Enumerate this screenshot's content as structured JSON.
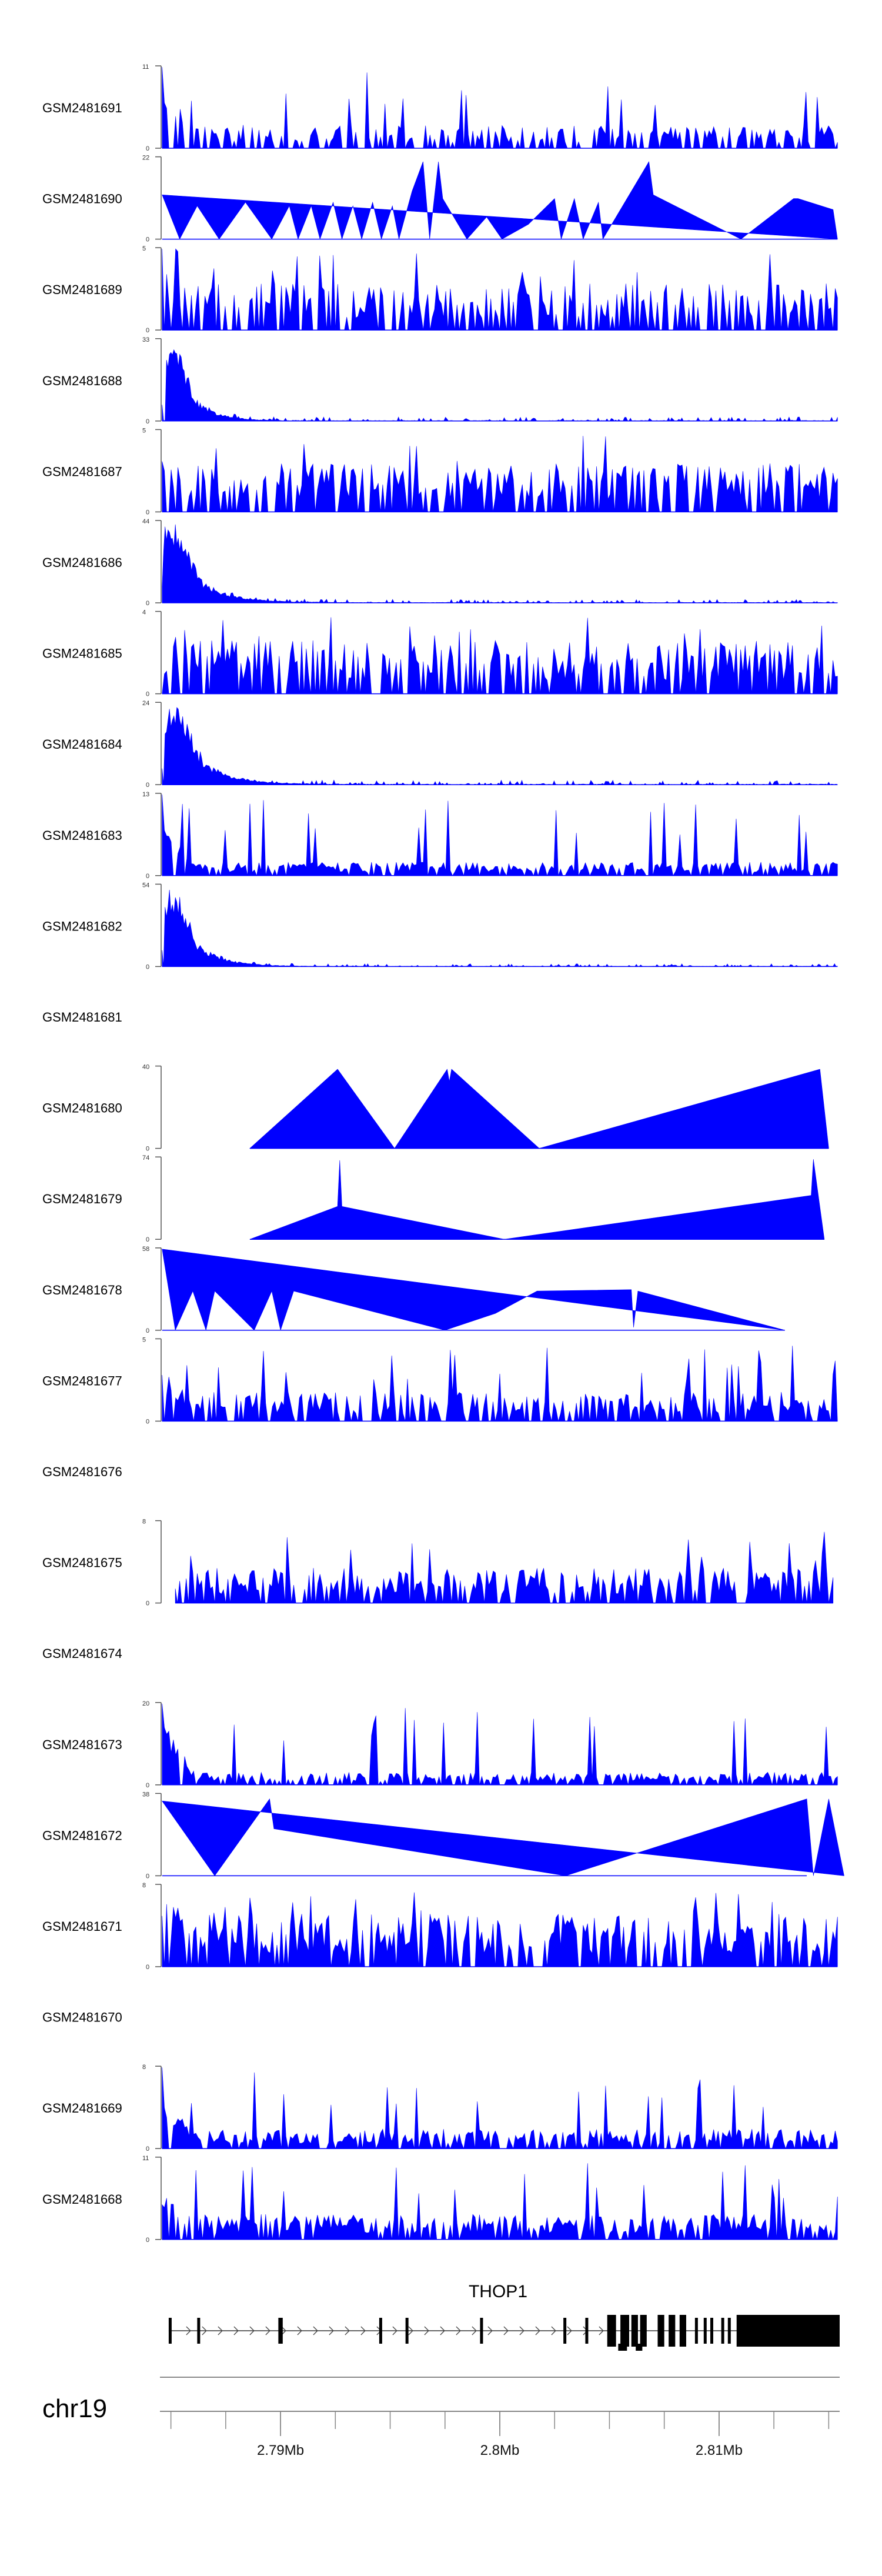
{
  "chart_data": {
    "type": "area",
    "title": "",
    "chromosome": "chr19",
    "fill_color": "#0000ff",
    "gene_color": "#000000",
    "axis_color": "#888888",
    "xlim": [
      2.7845,
      2.8155
    ],
    "x_unit": "Mb",
    "ticks": [
      {
        "value": 2.79,
        "label": "2.79Mb"
      },
      {
        "value": 2.8,
        "label": "2.8Mb"
      },
      {
        "value": 2.81,
        "label": "2.81Mb"
      }
    ],
    "minor_ticks": [
      2.785,
      2.7875,
      2.79,
      2.7925,
      2.795,
      2.7975,
      2.8,
      2.8025,
      2.805,
      2.8075,
      2.81,
      2.8125,
      2.815
    ],
    "tracks": [
      {
        "name": "GSM2481691",
        "ymax": 11,
        "seed": 11,
        "style": "spiky",
        "decay": 0.55,
        "density": 0.55,
        "base": 0.24,
        "xstart": 2.7846,
        "xend": 2.8154
      },
      {
        "name": "GSM2481690",
        "ymax": 22,
        "seed": 22,
        "style": "tri",
        "xstart": 2.7846,
        "xend": 2.8154,
        "profile": [
          [
            2.7846,
            12
          ],
          [
            2.7854,
            0
          ],
          [
            2.7862,
            9
          ],
          [
            2.7872,
            0
          ],
          [
            2.7884,
            10
          ],
          [
            2.7896,
            0
          ],
          [
            2.7904,
            9
          ],
          [
            2.7908,
            0
          ],
          [
            2.7914,
            9
          ],
          [
            2.7918,
            0
          ],
          [
            2.7924,
            10
          ],
          [
            2.7928,
            0
          ],
          [
            2.7933,
            9
          ],
          [
            2.7937,
            0
          ],
          [
            2.7942,
            10
          ],
          [
            2.7946,
            0
          ],
          [
            2.7951,
            9
          ],
          [
            2.7954,
            0
          ],
          [
            2.796,
            13
          ],
          [
            2.7965,
            21
          ],
          [
            2.7968,
            0
          ],
          [
            2.7972,
            21
          ],
          [
            2.7974,
            11
          ],
          [
            2.7985,
            0
          ],
          [
            2.7994,
            6
          ],
          [
            2.8001,
            0
          ],
          [
            2.8013,
            4
          ],
          [
            2.8025,
            11
          ],
          [
            2.8028,
            0
          ],
          [
            2.8034,
            11
          ],
          [
            2.8038,
            0
          ],
          [
            2.8045,
            10
          ],
          [
            2.8047,
            0
          ],
          [
            2.8068,
            21
          ],
          [
            2.807,
            12
          ],
          [
            2.811,
            0
          ],
          [
            2.8134,
            11
          ],
          [
            2.8136,
            11
          ],
          [
            2.8152,
            8
          ],
          [
            2.8154,
            0
          ]
        ]
      },
      {
        "name": "GSM2481689",
        "ymax": 5,
        "seed": 89,
        "style": "spiky",
        "decay": 0.35,
        "density": 0.62,
        "base": 0.48,
        "xstart": 2.7846,
        "xend": 2.8154
      },
      {
        "name": "GSM2481688",
        "ymax": 33,
        "seed": 88,
        "style": "hump",
        "peak": 2.7851,
        "width": 0.0006,
        "base": 0.035,
        "xstart": 2.7846,
        "xend": 2.8154
      },
      {
        "name": "GSM2481687",
        "ymax": 5,
        "seed": 87,
        "style": "spiky",
        "decay": 0.2,
        "density": 0.68,
        "base": 0.5,
        "xstart": 2.7846,
        "xend": 2.8154
      },
      {
        "name": "GSM2481686",
        "ymax": 44,
        "seed": 86,
        "style": "hump",
        "peak": 2.7851,
        "width": 0.0008,
        "base": 0.03,
        "xstart": 2.7846,
        "xend": 2.8154
      },
      {
        "name": "GSM2481685",
        "ymax": 4,
        "seed": 85,
        "style": "spiky",
        "decay": 0.1,
        "density": 0.7,
        "base": 0.55,
        "xstart": 2.7846,
        "xend": 2.8154
      },
      {
        "name": "GSM2481684",
        "ymax": 24,
        "seed": 84,
        "style": "hump",
        "peak": 2.7852,
        "width": 0.0008,
        "base": 0.04,
        "xstart": 2.7846,
        "xend": 2.8154
      },
      {
        "name": "GSM2481683",
        "ymax": 13,
        "seed": 83,
        "style": "spiky",
        "decay": 0.6,
        "density": 0.8,
        "base": 0.14,
        "xstart": 2.7846,
        "xend": 2.8154
      },
      {
        "name": "GSM2481682",
        "ymax": 54,
        "seed": 82,
        "style": "hump",
        "peak": 2.7851,
        "width": 0.0007,
        "base": 0.025,
        "xstart": 2.7846,
        "xend": 2.8154
      },
      {
        "name": "GSM2481681",
        "style": "empty"
      },
      {
        "name": "GSM2481680",
        "ymax": 40,
        "seed": 80,
        "style": "tri",
        "xstart": 2.7886,
        "xend": 2.815,
        "profile": [
          [
            2.7886,
            0
          ],
          [
            2.7926,
            39
          ],
          [
            2.7952,
            0
          ],
          [
            2.7976,
            39
          ],
          [
            2.7977,
            33
          ],
          [
            2.7978,
            39
          ],
          [
            2.8018,
            0
          ],
          [
            2.8146,
            39
          ],
          [
            2.815,
            0
          ]
        ]
      },
      {
        "name": "GSM2481679",
        "ymax": 74,
        "seed": 79,
        "style": "tri",
        "xstart": 2.7886,
        "xend": 2.8148,
        "profile": [
          [
            2.7886,
            0
          ],
          [
            2.7926,
            30
          ],
          [
            2.7927,
            72
          ],
          [
            2.7928,
            30
          ],
          [
            2.8002,
            0
          ],
          [
            2.8142,
            40
          ],
          [
            2.8143,
            73
          ],
          [
            2.8148,
            0
          ]
        ]
      },
      {
        "name": "GSM2481678",
        "ymax": 58,
        "seed": 78,
        "style": "tri",
        "xstart": 2.7846,
        "xend": 2.813,
        "profile": [
          [
            2.7846,
            58
          ],
          [
            2.7852,
            0
          ],
          [
            2.786,
            28
          ],
          [
            2.7866,
            0
          ],
          [
            2.787,
            28
          ],
          [
            2.7888,
            0
          ],
          [
            2.7896,
            28
          ],
          [
            2.79,
            0
          ],
          [
            2.7906,
            28
          ],
          [
            2.7975,
            0
          ],
          [
            2.7998,
            12
          ],
          [
            2.8017,
            28
          ],
          [
            2.806,
            29
          ],
          [
            2.8061,
            2
          ],
          [
            2.8063,
            28
          ],
          [
            2.813,
            0
          ]
        ]
      },
      {
        "name": "GSM2481677",
        "ymax": 5,
        "seed": 77,
        "style": "spiky",
        "decay": 0.3,
        "density": 0.7,
        "base": 0.3,
        "xstart": 2.7846,
        "xend": 2.8154
      },
      {
        "name": "GSM2481676",
        "style": "empty"
      },
      {
        "name": "GSM2481675",
        "ymax": 8,
        "seed": 75,
        "style": "spiky",
        "decay": 0.0,
        "density": 0.72,
        "base": 0.36,
        "xstart": 2.7852,
        "xend": 2.8152
      },
      {
        "name": "GSM2481674",
        "style": "empty"
      },
      {
        "name": "GSM2481673",
        "ymax": 20,
        "seed": 73,
        "style": "spiky",
        "decay": 0.7,
        "density": 0.75,
        "base": 0.13,
        "xstart": 2.7846,
        "xend": 2.8154
      },
      {
        "name": "GSM2481672",
        "ymax": 38,
        "seed": 72,
        "style": "tri",
        "xstart": 2.7846,
        "xend": 2.814,
        "profile": [
          [
            2.7846,
            35
          ],
          [
            2.787,
            0
          ],
          [
            2.7895,
            36
          ],
          [
            2.7897,
            22
          ],
          [
            2.803,
            0
          ],
          [
            2.814,
            36
          ],
          [
            2.8143,
            0
          ],
          [
            2.815,
            36
          ],
          [
            2.8157,
            0
          ]
        ]
      },
      {
        "name": "GSM2481671",
        "ymax": 8,
        "seed": 71,
        "style": "spiky",
        "decay": 0.15,
        "density": 0.75,
        "base": 0.55,
        "xstart": 2.7846,
        "xend": 2.8154
      },
      {
        "name": "GSM2481670",
        "style": "empty"
      },
      {
        "name": "GSM2481669",
        "ymax": 8,
        "seed": 69,
        "style": "spiky",
        "decay": 0.4,
        "density": 0.8,
        "base": 0.2,
        "xstart": 2.7846,
        "xend": 2.8154
      },
      {
        "name": "GSM2481668",
        "ymax": 11,
        "seed": 68,
        "style": "spiky",
        "decay": 0.3,
        "density": 0.78,
        "base": 0.26,
        "xstart": 2.7846,
        "xend": 2.8154
      }
    ],
    "gene": {
      "name": "THOP1",
      "strand": "+",
      "start": 2.7849,
      "end": 2.8155,
      "exons": [
        [
          2.7849,
          2.78495
        ],
        [
          2.7862,
          2.78625
        ],
        [
          2.7899,
          2.7901
        ],
        [
          2.7945,
          2.7946
        ],
        [
          2.7957,
          2.7958
        ],
        [
          2.7991,
          2.7992
        ],
        [
          2.8029,
          2.803
        ],
        [
          2.8039,
          2.804
        ],
        [
          2.8049,
          2.8053
        ],
        [
          2.8055,
          2.8059
        ],
        [
          2.806,
          2.8063
        ],
        [
          2.8064,
          2.8067
        ],
        [
          2.8072,
          2.8075
        ],
        [
          2.8077,
          2.808
        ],
        [
          2.8082,
          2.8085
        ],
        [
          2.8089,
          2.809
        ],
        [
          2.8093,
          2.8094
        ],
        [
          2.8096,
          2.8097
        ],
        [
          2.8101,
          2.8102
        ],
        [
          2.8104,
          2.8105
        ],
        [
          2.8108,
          2.8155
        ]
      ]
    }
  }
}
